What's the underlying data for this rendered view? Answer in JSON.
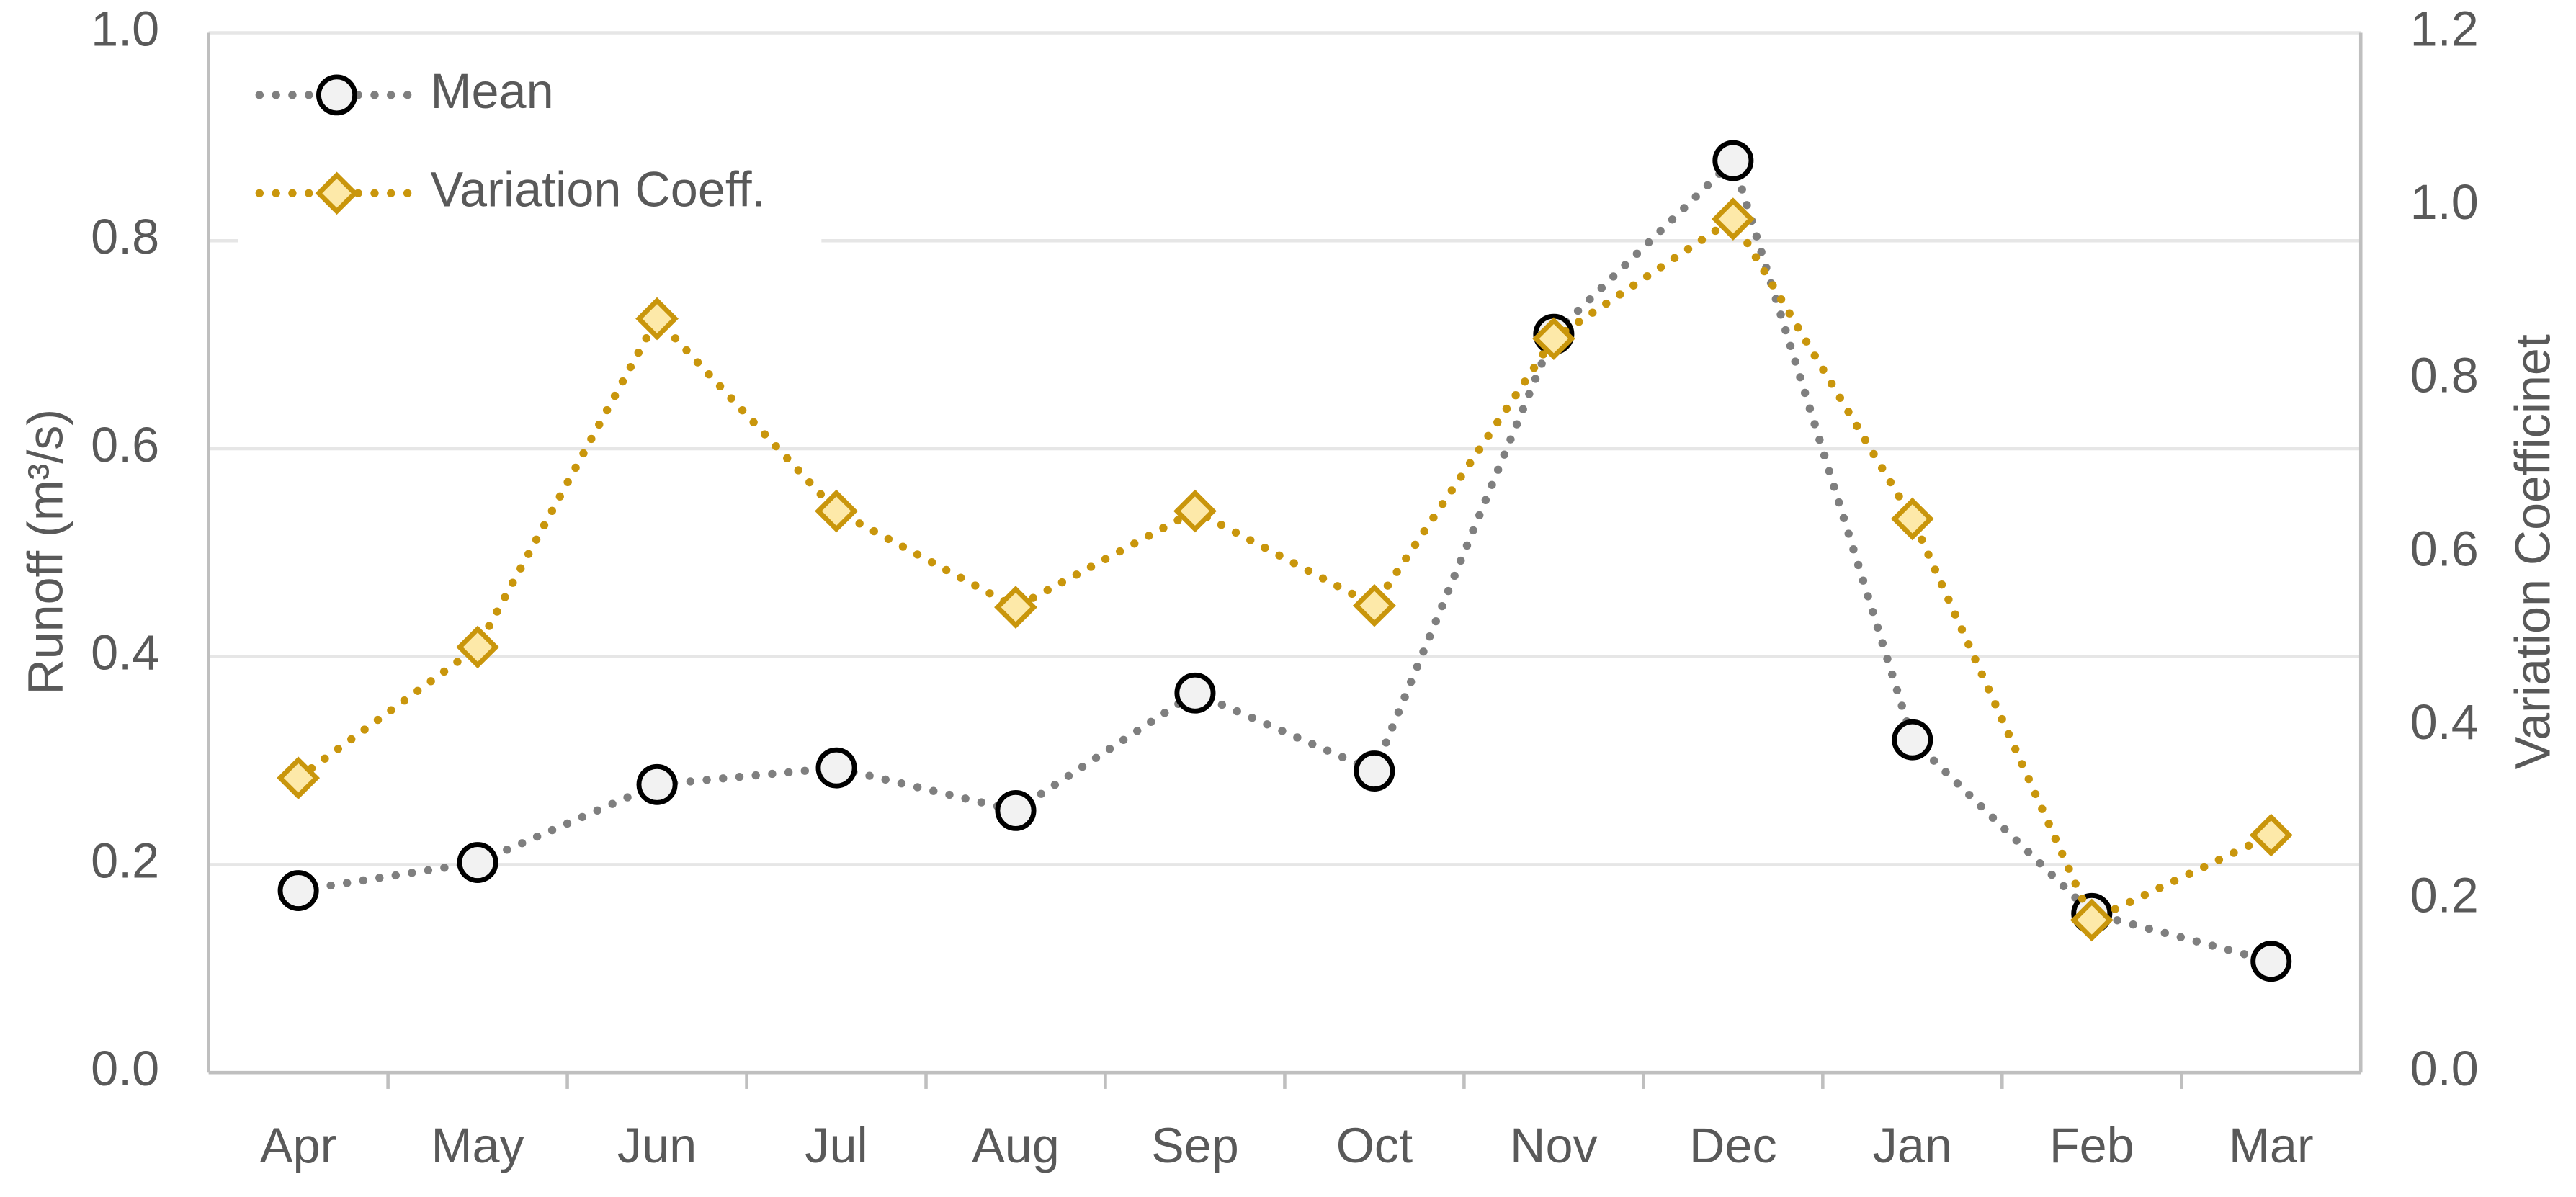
{
  "chart_data": {
    "type": "line",
    "y_label": "Runoff (m³/s)",
    "y2_label": "Variation Coefficinet",
    "categories": [
      "Apr",
      "May",
      "Jun",
      "Jul",
      "Aug",
      "Sep",
      "Oct",
      "Nov",
      "Dec",
      "Jan",
      "Feb",
      "Mar"
    ],
    "series": [
      {
        "name": "Mean",
        "color": "#7f7f7f",
        "marker": "circle",
        "values": [
          0.175,
          0.202,
          0.277,
          0.293,
          0.252,
          0.365,
          0.29,
          0.71,
          0.877,
          0.32,
          0.153,
          0.107
        ]
      },
      {
        "name": "Variation Coeff.",
        "color": "#c9960c",
        "marker": "diamond",
        "axis": "y2",
        "values": [
          0.34,
          0.491,
          0.87,
          0.648,
          0.537,
          0.648,
          0.539,
          0.847,
          0.985,
          0.639,
          0.176,
          0.274
        ]
      }
    ],
    "ylim": [
      0,
      1.0
    ],
    "yticks": [
      {
        "value": 0,
        "label": "0.0"
      },
      0.2,
      0.4,
      0.6,
      0.8,
      {
        "value": 1.0,
        "label": "1.0"
      }
    ],
    "y2lim": [
      0,
      1.2
    ],
    "y2ticks": [
      {
        "value": 0,
        "label": "0.0"
      },
      0.2,
      0.4,
      0.6,
      0.8,
      {
        "value": 1.0,
        "label": "1.0"
      },
      1.2
    ],
    "grid": true,
    "legend": "top-left"
  }
}
